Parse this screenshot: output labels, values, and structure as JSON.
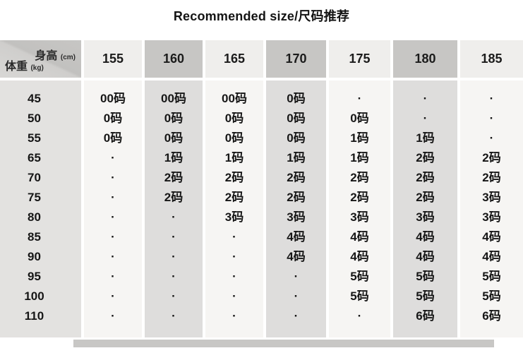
{
  "title": "Recommended size/尺码推荐",
  "corner": {
    "col_label": "身高",
    "col_unit": "(cm)",
    "row_label": "体重",
    "row_unit": "(kg)"
  },
  "dot": "·",
  "colors": {
    "header_dark": "#c7c6c4",
    "header_light": "#efeeec",
    "body_dark": "#dedddc",
    "body_light": "#f6f5f3",
    "label_column": "#e3e2e0",
    "text": "#161616"
  },
  "chart_data": {
    "type": "table",
    "title": "Recommended size/尺码推荐",
    "columns": [
      "体重(kg)\\身高(cm)",
      "155",
      "160",
      "165",
      "170",
      "175",
      "180",
      "185"
    ],
    "rows": [
      [
        "45",
        "00码",
        "00码",
        "00码",
        "0码",
        "·",
        "·",
        "·"
      ],
      [
        "50",
        "0码",
        "0码",
        "0码",
        "0码",
        "0码",
        "·",
        "·"
      ],
      [
        "55",
        "0码",
        "0码",
        "0码",
        "0码",
        "1码",
        "1码",
        "·"
      ],
      [
        "65",
        "·",
        "1码",
        "1码",
        "1码",
        "1码",
        "2码",
        "2码"
      ],
      [
        "70",
        "·",
        "2码",
        "2码",
        "2码",
        "2码",
        "2码",
        "2码"
      ],
      [
        "75",
        "·",
        "2码",
        "2码",
        "2码",
        "2码",
        "2码",
        "3码"
      ],
      [
        "80",
        "·",
        "·",
        "3码",
        "3码",
        "3码",
        "3码",
        "3码"
      ],
      [
        "85",
        "·",
        "·",
        "·",
        "4码",
        "4码",
        "4码",
        "4码"
      ],
      [
        "90",
        "·",
        "·",
        "·",
        "4码",
        "4码",
        "4码",
        "4码"
      ],
      [
        "95",
        "·",
        "·",
        "·",
        "·",
        "5码",
        "5码",
        "5码"
      ],
      [
        "100",
        "·",
        "·",
        "·",
        "·",
        "5码",
        "5码",
        "5码"
      ],
      [
        "110",
        "·",
        "·",
        "·",
        "·",
        "·",
        "6码",
        "6码"
      ]
    ]
  }
}
